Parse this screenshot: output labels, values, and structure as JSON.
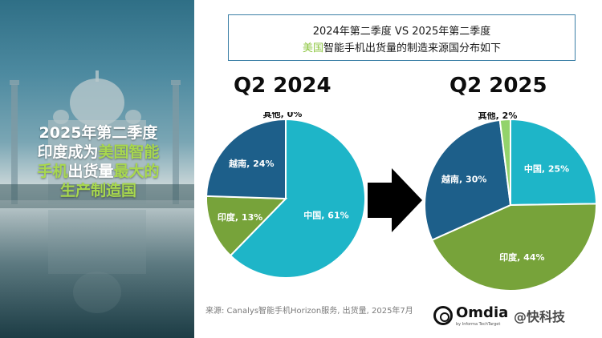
{
  "left": {
    "line1": "2025年第二季度",
    "line2_a": "印度成为",
    "line2_b": "美国智能",
    "line3_a": "手机",
    "line3_b": "出货量",
    "line3_c": "最大的",
    "line4": "生产制造国"
  },
  "title": {
    "line1": "2024年第二季度 VS 2025年第二季度",
    "line2_highlight": "美国",
    "line2_rest": "智能手机出货量的制造来源国分布如下"
  },
  "colors": {
    "china": "#1eb5c8",
    "india": "#77a33a",
    "vietnam": "#1d5f8a",
    "other": "#93d36b",
    "title_border": "#3b7fa6",
    "highlight": "#8cc63f"
  },
  "chart_data": [
    {
      "type": "pie",
      "title": "Q2 2024",
      "slices": [
        {
          "label": "中国",
          "value": 61,
          "text": "中国, 61%",
          "color": "#1eb5c8"
        },
        {
          "label": "印度",
          "value": 13,
          "text": "印度, 13%",
          "color": "#77a33a"
        },
        {
          "label": "越南",
          "value": 24,
          "text": "越南, 24%",
          "color": "#1d5f8a"
        },
        {
          "label": "其他",
          "value": 0,
          "text": "其他, 0%",
          "color": "#93d36b"
        }
      ]
    },
    {
      "type": "pie",
      "title": "Q2 2025",
      "slices": [
        {
          "label": "中国",
          "value": 25,
          "text": "中国, 25%",
          "color": "#1eb5c8"
        },
        {
          "label": "印度",
          "value": 44,
          "text": "印度, 44%",
          "color": "#77a33a"
        },
        {
          "label": "越南",
          "value": 30,
          "text": "越南, 30%",
          "color": "#1d5f8a"
        },
        {
          "label": "其他",
          "value": 2,
          "text": "其他, 2%",
          "color": "#93d36b"
        }
      ]
    }
  ],
  "source": "来源: Canalys智能手机Horizon服务, 出货量, 2025年7月",
  "logo": {
    "name": "Omdia",
    "sub": "by Informa TechTarget"
  },
  "watermark": "@快科技",
  "icons": {
    "arrow": "right-arrow-icon",
    "logo": "omdia-logo-icon"
  }
}
